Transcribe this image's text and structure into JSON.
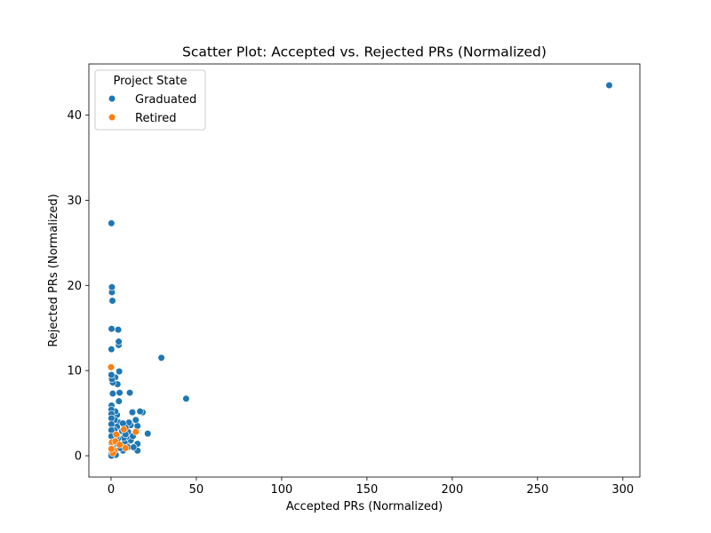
{
  "chart_data": {
    "type": "scatter",
    "title": "Scatter Plot: Accepted vs. Rejected PRs (Normalized)",
    "xlabel": "Accepted PRs (Normalized)",
    "ylabel": "Rejected PRs (Normalized)",
    "xlim": [
      -13,
      310
    ],
    "ylim": [
      -2.5,
      46
    ],
    "xticks": [
      0,
      50,
      100,
      150,
      200,
      250,
      300
    ],
    "yticks": [
      0,
      10,
      20,
      30,
      40
    ],
    "grid": false,
    "legend": {
      "title": "Project State",
      "placement": "top-left"
    },
    "series": [
      {
        "name": "Graduated",
        "color": "#1f77b4",
        "points": [
          [
            292,
            43.5
          ],
          [
            44,
            6.7
          ],
          [
            29.5,
            11.5
          ],
          [
            21.5,
            2.6
          ],
          [
            18.5,
            5.1
          ],
          [
            17,
            5.2
          ],
          [
            15.5,
            0.6
          ],
          [
            15.5,
            1.4
          ],
          [
            15.5,
            3.5
          ],
          [
            14.5,
            4.2
          ],
          [
            12.5,
            5.1
          ],
          [
            11.5,
            3.6
          ],
          [
            11.5,
            1.8
          ],
          [
            11,
            7.4
          ],
          [
            10.5,
            3.9
          ],
          [
            10,
            2.8
          ],
          [
            9.5,
            1.2
          ],
          [
            9,
            2.2
          ],
          [
            8.5,
            3.3
          ],
          [
            8,
            1.5
          ],
          [
            7.5,
            2.1
          ],
          [
            7,
            0.6
          ],
          [
            6.5,
            2.9
          ],
          [
            6,
            1.1
          ],
          [
            5,
            7.4
          ],
          [
            4.8,
            9.9
          ],
          [
            4.6,
            6.4
          ],
          [
            4.5,
            13.0
          ],
          [
            4.5,
            13.4
          ],
          [
            4.2,
            14.8
          ],
          [
            4.5,
            3.9
          ],
          [
            4,
            2.0
          ],
          [
            3.8,
            8.4
          ],
          [
            3.5,
            4.8
          ],
          [
            3.5,
            3.4
          ],
          [
            3.2,
            2.2
          ],
          [
            3,
            1.4
          ],
          [
            2.8,
            0.1
          ],
          [
            2.5,
            9.2
          ],
          [
            2.5,
            5.2
          ],
          [
            2.2,
            4.2
          ],
          [
            2,
            3.0
          ],
          [
            1.8,
            1.9
          ],
          [
            1.5,
            0.8
          ],
          [
            1.2,
            2.6
          ],
          [
            1,
            8.6
          ],
          [
            1,
            7.3
          ],
          [
            0.8,
            18.2
          ],
          [
            0.5,
            19.2
          ],
          [
            0.5,
            19.8
          ],
          [
            0.5,
            9.0
          ],
          [
            0.3,
            14.9
          ],
          [
            0.2,
            12.5
          ],
          [
            0.2,
            27.3
          ],
          [
            0.2,
            9.5
          ],
          [
            0.3,
            5.9
          ],
          [
            0.2,
            5.4
          ],
          [
            0.2,
            4.9
          ],
          [
            0.2,
            4.4
          ],
          [
            0.2,
            3.7
          ],
          [
            0.2,
            3.0
          ],
          [
            0.2,
            2.3
          ],
          [
            0.2,
            1.5
          ],
          [
            0.2,
            0.8
          ],
          [
            0.2,
            0.2
          ],
          [
            0.2,
            0.0
          ],
          [
            5.5,
            0.9
          ],
          [
            7,
            3.8
          ],
          [
            8.5,
            2.5
          ],
          [
            9.8,
            1.0
          ],
          [
            12.8,
            2.3
          ],
          [
            13.2,
            1.0
          ]
        ]
      },
      {
        "name": "Retired",
        "color": "#ff7f0e",
        "points": [
          [
            0,
            10.4
          ],
          [
            14.5,
            2.8
          ],
          [
            7.5,
            3.1
          ],
          [
            3,
            2.5
          ],
          [
            2,
            0.6
          ],
          [
            1,
            0.3
          ],
          [
            0.5,
            1.6
          ],
          [
            0.2,
            0.8
          ],
          [
            2.5,
            1.7
          ],
          [
            5,
            1.3
          ],
          [
            8.5,
            0.9
          ]
        ]
      }
    ]
  }
}
